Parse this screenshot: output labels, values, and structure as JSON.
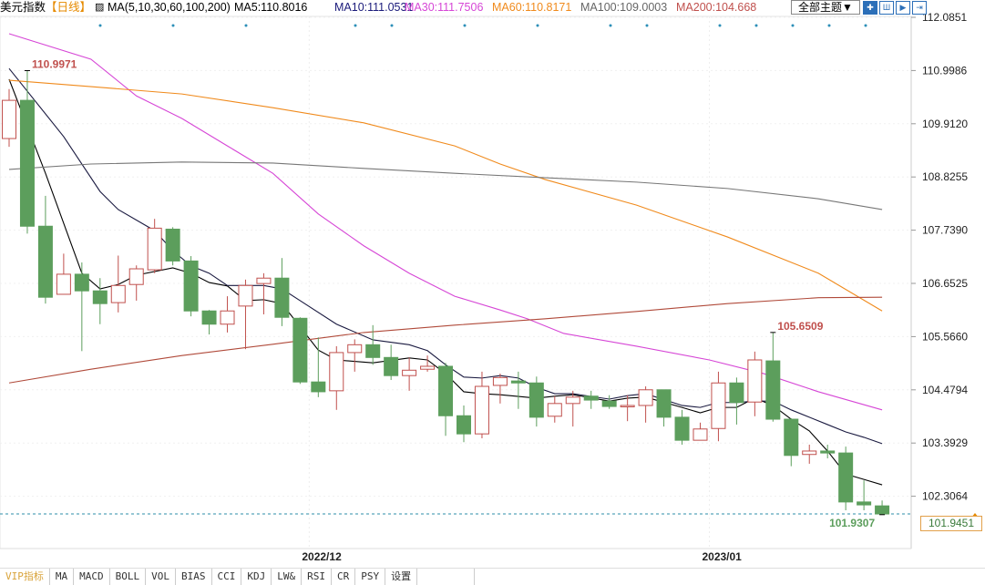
{
  "header": {
    "title": "美元指数",
    "period": "【日线】",
    "ma_params": "MA(5,10,30,60,100,200)",
    "ma5": "MA5:110.8016",
    "ma10": "MA10:111.0531",
    "ma30": "MA30:111.7506",
    "ma60": "MA60:110.8171",
    "ma100": "MA100:109.0003",
    "ma200": "MA200:104.668",
    "theme_button": "全部主题▼",
    "tool_icons": [
      "crosshair-icon",
      "zoom-in-icon",
      "step-icon",
      "end-icon"
    ]
  },
  "colors": {
    "up": "#c0504d",
    "down": "#5c9e5c",
    "ma5": "#000000",
    "ma10": "#1a1a40",
    "ma30": "#d646d6",
    "ma60": "#f08a1c",
    "ma100": "#777777",
    "ma200": "#b04a3a"
  },
  "tabs": [
    "VIP指标",
    "MA",
    "MACD",
    "BOLL",
    "VOL",
    "BIAS",
    "CCI",
    "KDJ",
    "LW&",
    "RSI",
    "CR",
    "PSY",
    "设置"
  ],
  "current_price": "101.9451",
  "chart_data": {
    "type": "candlestick",
    "title": "美元指数【日线】",
    "x_labels": [
      {
        "index": 16,
        "label": "2022/12"
      },
      {
        "index": 38,
        "label": "2023/01"
      }
    ],
    "y_ticks": [
      "112.0851",
      "110.9986",
      "109.9120",
      "108.8255",
      "107.7390",
      "106.6525",
      "105.5660",
      "104.4794",
      "103.3929",
      "102.3064"
    ],
    "ylim": [
      101.9451,
      112.0851
    ],
    "annotations": [
      {
        "index": 1,
        "label": "110.9971",
        "type": "high"
      },
      {
        "index": 42,
        "label": "105.6509",
        "type": "high"
      },
      {
        "index": 48,
        "label": "101.9307",
        "type": "low"
      }
    ],
    "ohlc": [
      [
        109.61,
        110.62,
        109.44,
        110.39
      ],
      [
        110.39,
        110.997,
        107.67,
        107.82
      ],
      [
        107.82,
        108.44,
        106.24,
        106.37
      ],
      [
        106.43,
        107.26,
        106.43,
        106.84
      ],
      [
        106.84,
        107.08,
        105.27,
        106.5
      ],
      [
        106.5,
        106.76,
        105.82,
        106.24
      ],
      [
        106.26,
        107.22,
        106.06,
        106.61
      ],
      [
        106.63,
        107.02,
        106.3,
        106.95
      ],
      [
        106.93,
        107.97,
        106.86,
        107.78
      ],
      [
        107.76,
        107.8,
        107.02,
        107.11
      ],
      [
        107.11,
        107.21,
        105.98,
        106.09
      ],
      [
        106.09,
        106.11,
        105.61,
        105.82
      ],
      [
        105.82,
        106.39,
        105.65,
        106.09
      ],
      [
        106.19,
        106.73,
        105.31,
        106.61
      ],
      [
        106.65,
        106.86,
        106.02,
        106.76
      ],
      [
        106.76,
        107.17,
        105.78,
        105.96
      ],
      [
        105.94,
        105.96,
        104.6,
        104.64
      ],
      [
        104.64,
        105.55,
        104.33,
        104.44
      ],
      [
        104.46,
        105.37,
        104.07,
        105.24
      ],
      [
        105.24,
        105.51,
        104.85,
        105.4
      ],
      [
        105.4,
        105.8,
        104.99,
        105.14
      ],
      [
        105.14,
        105.4,
        104.68,
        104.77
      ],
      [
        104.77,
        105.14,
        104.46,
        104.88
      ],
      [
        104.9,
        105.18,
        104.85,
        104.96
      ],
      [
        104.96,
        105.03,
        103.54,
        103.95
      ],
      [
        103.95,
        104.16,
        103.41,
        103.58
      ],
      [
        103.58,
        104.85,
        103.49,
        104.55
      ],
      [
        104.57,
        104.81,
        104.2,
        104.73
      ],
      [
        104.66,
        104.85,
        104.09,
        104.62
      ],
      [
        104.62,
        104.75,
        103.73,
        103.92
      ],
      [
        103.94,
        104.35,
        103.81,
        104.2
      ],
      [
        104.2,
        104.46,
        103.73,
        104.33
      ],
      [
        104.35,
        104.46,
        104.09,
        104.27
      ],
      [
        104.25,
        104.37,
        104.09,
        104.14
      ],
      [
        104.14,
        104.37,
        103.84,
        104.16
      ],
      [
        104.16,
        104.55,
        103.81,
        104.48
      ],
      [
        104.48,
        104.48,
        103.73,
        103.92
      ],
      [
        103.92,
        104.07,
        103.36,
        103.45
      ],
      [
        103.45,
        103.81,
        103.45,
        103.68
      ],
      [
        103.69,
        104.85,
        103.43,
        104.62
      ],
      [
        104.62,
        104.73,
        103.77,
        104.22
      ],
      [
        104.23,
        105.26,
        103.94,
        105.09
      ],
      [
        105.07,
        105.6509,
        103.83,
        103.88
      ],
      [
        103.88,
        103.9,
        102.92,
        103.14
      ],
      [
        103.16,
        103.36,
        102.97,
        103.23
      ],
      [
        103.23,
        103.36,
        103.08,
        103.19
      ],
      [
        103.19,
        103.32,
        102.02,
        102.19
      ],
      [
        102.19,
        102.63,
        102.02,
        102.13
      ],
      [
        102.11,
        102.22,
        101.9307,
        101.9451
      ]
    ],
    "series": [
      {
        "name": "MA5",
        "points": [
          [
            0,
            110.82
          ],
          [
            2,
            108.9
          ],
          [
            4,
            106.86
          ],
          [
            5,
            106.54
          ],
          [
            6,
            106.63
          ],
          [
            7,
            106.82
          ],
          [
            9,
            106.97
          ],
          [
            10,
            106.86
          ],
          [
            11,
            106.67
          ],
          [
            12,
            106.6
          ],
          [
            13,
            106.3
          ],
          [
            14,
            106.32
          ],
          [
            15,
            106.24
          ],
          [
            17,
            105.29
          ],
          [
            18,
            105.09
          ],
          [
            20,
            105.03
          ],
          [
            22,
            105.13
          ],
          [
            23,
            105.09
          ],
          [
            24,
            104.81
          ],
          [
            25,
            104.44
          ],
          [
            26,
            104.4
          ],
          [
            27,
            104.38
          ],
          [
            29,
            104.31
          ],
          [
            30,
            104.35
          ],
          [
            31,
            104.38
          ],
          [
            33,
            104.25
          ],
          [
            34,
            104.31
          ],
          [
            35,
            104.33
          ],
          [
            37,
            104.12
          ],
          [
            38,
            104.01
          ],
          [
            39,
            104.12
          ],
          [
            40,
            104.12
          ],
          [
            41,
            104.31
          ],
          [
            42,
            104.16
          ],
          [
            43,
            103.88
          ],
          [
            44,
            103.64
          ],
          [
            45,
            103.23
          ],
          [
            46,
            102.76
          ],
          [
            47,
            102.65
          ],
          [
            48,
            102.54
          ]
        ]
      },
      {
        "name": "MA10",
        "points": [
          [
            0,
            111.04
          ],
          [
            3,
            109.65
          ],
          [
            5,
            108.53
          ],
          [
            6,
            108.16
          ],
          [
            8,
            107.73
          ],
          [
            9,
            107.32
          ],
          [
            10,
            107.01
          ],
          [
            11,
            106.86
          ],
          [
            12,
            106.61
          ],
          [
            14,
            106.61
          ],
          [
            15,
            106.54
          ],
          [
            16,
            106.3
          ],
          [
            18,
            105.82
          ],
          [
            20,
            105.5
          ],
          [
            22,
            105.4
          ],
          [
            23,
            105.28
          ],
          [
            24,
            104.99
          ],
          [
            25,
            104.74
          ],
          [
            26,
            104.72
          ],
          [
            27,
            104.77
          ],
          [
            28,
            104.72
          ],
          [
            29,
            104.53
          ],
          [
            30,
            104.4
          ],
          [
            31,
            104.4
          ],
          [
            33,
            104.29
          ],
          [
            34,
            104.36
          ],
          [
            35,
            104.4
          ],
          [
            37,
            104.16
          ],
          [
            38,
            104.12
          ],
          [
            39,
            104.22
          ],
          [
            40,
            104.22
          ],
          [
            41,
            104.25
          ],
          [
            42,
            104.25
          ],
          [
            43,
            104.07
          ],
          [
            44,
            103.92
          ],
          [
            45,
            103.77
          ],
          [
            46,
            103.62
          ],
          [
            47,
            103.51
          ],
          [
            48,
            103.38
          ]
        ]
      },
      {
        "name": "MA30",
        "points": [
          [
            0,
            111.75
          ],
          [
            4.5,
            111.23
          ],
          [
            7,
            110.48
          ],
          [
            9.5,
            110.02
          ],
          [
            12,
            109.46
          ],
          [
            14.5,
            108.9
          ],
          [
            17,
            108.07
          ],
          [
            19.5,
            107.42
          ],
          [
            22,
            106.86
          ],
          [
            24.5,
            106.39
          ],
          [
            27,
            106.11
          ],
          [
            28.5,
            105.93
          ],
          [
            30.5,
            105.63
          ],
          [
            34.5,
            105.37
          ],
          [
            38.5,
            105.09
          ],
          [
            41.5,
            104.81
          ],
          [
            44.5,
            104.44
          ],
          [
            48,
            104.07
          ]
        ]
      },
      {
        "name": "MA60",
        "points": [
          [
            0,
            110.8
          ],
          [
            4.5,
            110.67
          ],
          [
            9.5,
            110.52
          ],
          [
            14.5,
            110.24
          ],
          [
            19.5,
            109.93
          ],
          [
            24.5,
            109.46
          ],
          [
            27,
            109.09
          ],
          [
            29.5,
            108.77
          ],
          [
            34.5,
            108.25
          ],
          [
            39.5,
            107.6
          ],
          [
            44.5,
            106.86
          ],
          [
            48,
            106.09
          ]
        ]
      },
      {
        "name": "MA100",
        "points": [
          [
            0,
            108.98
          ],
          [
            4.5,
            109.09
          ],
          [
            9.5,
            109.13
          ],
          [
            14.5,
            109.11
          ],
          [
            19.5,
            109.0
          ],
          [
            24.5,
            108.9
          ],
          [
            29.5,
            108.81
          ],
          [
            34.5,
            108.72
          ],
          [
            39.5,
            108.59
          ],
          [
            44.5,
            108.38
          ],
          [
            48,
            108.16
          ]
        ]
      },
      {
        "name": "MA200",
        "points": [
          [
            0,
            104.62
          ],
          [
            4.5,
            104.9
          ],
          [
            9.5,
            105.18
          ],
          [
            14.5,
            105.41
          ],
          [
            19.5,
            105.65
          ],
          [
            24.5,
            105.8
          ],
          [
            29.5,
            105.93
          ],
          [
            34.5,
            106.08
          ],
          [
            39.5,
            106.24
          ],
          [
            44.5,
            106.36
          ],
          [
            48,
            106.37
          ]
        ]
      }
    ]
  }
}
